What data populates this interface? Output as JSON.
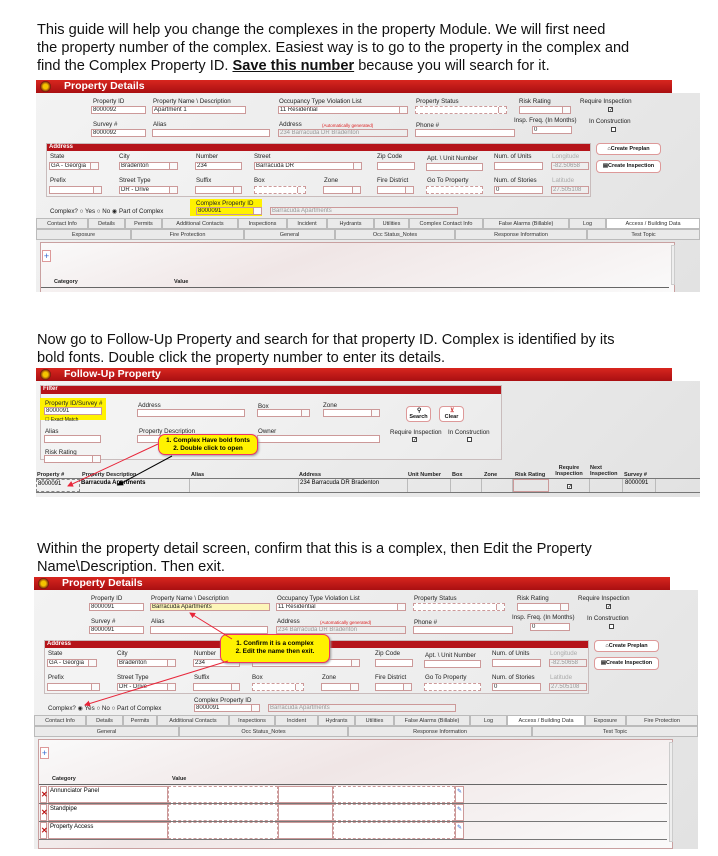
{
  "instructions": {
    "p1": [
      "This guide will help you change the complexes in the property Module. We will first need",
      "the property number of the complex. Easiest way is to go to the property in the complex and"
    ],
    "p1_line3_a": "find the Complex Property ID. ",
    "p1_line3_bold": "Save this number",
    "p1_line3_b": " because you will search for it.",
    "p2": [
      "Now go to Follow-Up Property and search for that property ID. Complex is identified by its",
      "bold fonts. Double click the property number to enter its details."
    ],
    "p3": [
      "Within the property detail screen, confirm that this is a complex, then Edit the Property",
      "Name\\Description. Then exit."
    ]
  },
  "colors": {
    "header_red": "#b5141a",
    "highlight_yellow": "#fff200",
    "callout_border": "#e33366"
  },
  "labels": {
    "property_id": "Property ID",
    "property_name": "Property Name \\ Description",
    "occupancy": "Occupancy Type Violation List",
    "property_status": "Property Status",
    "risk_rating": "Risk Rating",
    "require_inspection": "Require Inspection",
    "survey": "Survey #",
    "alias": "Alias",
    "address": "Address",
    "auto_generated": "(Automatically generated)",
    "phone": "Phone #",
    "insp_freq": "Insp. Freq. (In Months)",
    "in_construction": "In Construction",
    "address_section": "Address",
    "state": "State",
    "city": "City",
    "number": "Number",
    "street": "Street",
    "zip": "Zip Code",
    "apt": "Apt. \\ Unit Number",
    "num_units": "Num. of Units",
    "longitude": "Longitude",
    "prefix": "Prefix",
    "street_type": "Street Type",
    "suffix": "Suffix",
    "box": "Box",
    "zone": "Zone",
    "fire_district": "Fire District",
    "go_to_property": "Go To Property",
    "num_stories": "Num. of Stories",
    "latitude": "Latitude",
    "create_preplan": "Create Preplan",
    "create_inspection": "Create Inspection",
    "complex_q": "Complex?",
    "yes": "Yes",
    "no": "No",
    "part_of_complex": "Part of Complex",
    "complex_property_id": "Complex Property ID",
    "category": "Category",
    "value": "Value"
  },
  "panel1": {
    "title": "Property Details",
    "property_id": "8000092",
    "property_name": "Apartment 1",
    "occupancy": "11 Residential",
    "survey": "8000092",
    "address": "234 Barracuda DR Bradenton",
    "insp_freq": "0",
    "state": "GA - Georgia",
    "city": "Bradenton",
    "number": "234",
    "street": "Barracuda DR",
    "longitude": "-82.50658",
    "street_type": "DR - Drive",
    "num_stories": "0",
    "latitude": "27.505108",
    "require_inspection": true,
    "in_construction": false,
    "complex_selection": "Part of Complex",
    "complex_property_id": "8000091",
    "complex_name": "Barracuda Apartments",
    "tabs": [
      "Contact Info",
      "Details",
      "Permits",
      "Additional Contacts",
      "Inspections",
      "Incident",
      "Hydrants",
      "Utilities",
      "Complex Contact Info",
      "False Alarms (Billable)",
      "Log",
      "Access / Building Data"
    ],
    "active_tab": "Access / Building Data",
    "subtabs": [
      "Exposure",
      "Fire Protection",
      "General",
      "Occ Status_Notes",
      "Response Information",
      "Test Topic"
    ]
  },
  "panel2": {
    "title": "Follow-Up Property",
    "filter": "Filter",
    "property_id_label": "Property ID/Survey #",
    "property_id": "8000091",
    "exact_match": "Exact Match",
    "address": "Address",
    "box": "Box",
    "zone": "Zone",
    "search": "Search",
    "clear": "Clear",
    "alias": "Alias",
    "property_description": "Property Description",
    "owner": "Owner",
    "require_inspection": "Require Inspection",
    "in_construction": "In Construction",
    "risk_rating": "Risk Rating",
    "callout": [
      "1. Complex Have bold fonts",
      "2. Double click to open"
    ],
    "columns": [
      "Property #",
      "Property Description",
      "Alias",
      "Address",
      "Unit Number",
      "Box",
      "Zone",
      "Risk Rating",
      "Require Inspection",
      "Next Inspection",
      "Survey #"
    ],
    "row": {
      "property_num": "8000091",
      "description": "Barracuda Apartments",
      "address": "234 Barracuda DR Bradenton",
      "require_inspection": true,
      "survey": "8000091"
    }
  },
  "panel3": {
    "title": "Property Details",
    "property_id": "8000091",
    "property_name": "Barracuda Apartments",
    "occupancy": "11 Residential",
    "survey": "8000091",
    "address": "234 Barracuda DR Bradenton",
    "insp_freq": "0",
    "state": "GA - Georgia",
    "city": "Bradenton",
    "number": "234",
    "longitude": "-82.50658",
    "street_type": "DR - Drive",
    "num_stories": "0",
    "latitude": "27.505108",
    "require_inspection": true,
    "in_construction": false,
    "complex_selection": "Yes",
    "complex_property_id": "8000091",
    "complex_name": "Barracuda Apartments",
    "callout": [
      "1. Confirm it is a complex",
      "2. Edit the name then exit."
    ],
    "tabs": [
      "Contact Info",
      "Details",
      "Permits",
      "Additional Contacts",
      "Inspections",
      "Incident",
      "Hydrants",
      "Utilities",
      "False Alarms (Billable)",
      "Log",
      "Access / Building Data",
      "Exposure",
      "Fire Protection"
    ],
    "active_tab": "Access / Building Data",
    "subtabs": [
      "General",
      "Occ Status_Notes",
      "Response Information",
      "Test Topic"
    ],
    "rows": [
      "Annunciator Panel",
      "Standpipe",
      "Property Access"
    ]
  }
}
